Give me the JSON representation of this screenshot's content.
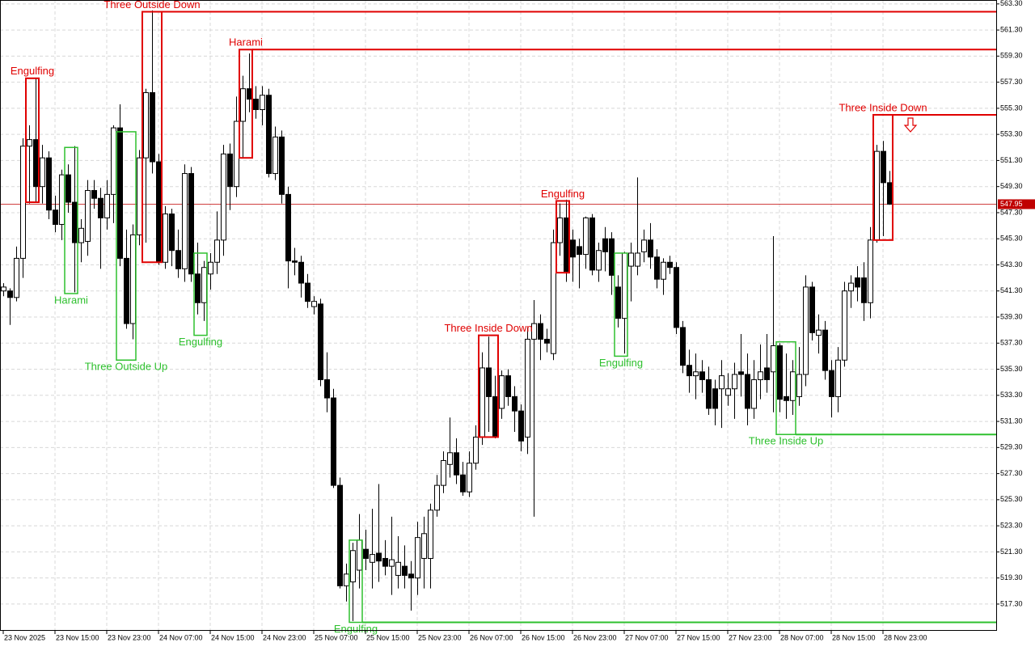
{
  "chart_data": {
    "type": "candlestick",
    "xlim": [
      -0.5,
      153.5
    ],
    "ylim": [
      515.25,
      563.6
    ],
    "grid": true,
    "up_color": "#ffffff",
    "down_color": "#000000",
    "current_price": 547.95,
    "current_color": "#c00000",
    "candles": [
      [
        541.3,
        541.9,
        540.9,
        541.6
      ],
      [
        541.3,
        541.5,
        538.7,
        540.8
      ],
      [
        540.8,
        544.7,
        540.5,
        543.8
      ],
      [
        543.8,
        553.0,
        542.3,
        552.4
      ],
      [
        552.4,
        554.0,
        548.0,
        552.9
      ],
      [
        552.9,
        557.6,
        548.1,
        549.3
      ],
      [
        549.3,
        552.5,
        548.0,
        551.5
      ],
      [
        551.5,
        552.0,
        546.8,
        547.5
      ],
      [
        547.5,
        548.6,
        545.8,
        546.4
      ],
      [
        546.4,
        550.6,
        545.2,
        550.2
      ],
      [
        550.2,
        551.0,
        547.3,
        548.1
      ],
      [
        548.1,
        552.4,
        541.2,
        545.0
      ],
      [
        545.0,
        546.8,
        543.5,
        546.1
      ],
      [
        545.1,
        549.8,
        544.0,
        549.0
      ],
      [
        549.0,
        549.8,
        547.6,
        548.4
      ],
      [
        548.4,
        549.2,
        543.0,
        546.9
      ],
      [
        546.9,
        549.8,
        546.0,
        548.7
      ],
      [
        548.7,
        554.0,
        546.5,
        553.8
      ],
      [
        553.8,
        555.6,
        543.2,
        543.8
      ],
      [
        543.8,
        546.0,
        538.4,
        538.8
      ],
      [
        538.8,
        546.4,
        537.6,
        545.6
      ],
      [
        545.6,
        552.1,
        544.8,
        551.5
      ],
      [
        551.5,
        556.8,
        545.0,
        556.5
      ],
      [
        556.5,
        562.8,
        550.3,
        551.2
      ],
      [
        551.2,
        551.8,
        543.3,
        543.5
      ],
      [
        543.5,
        547.8,
        543.0,
        547.2
      ],
      [
        547.2,
        547.6,
        543.2,
        544.4
      ],
      [
        544.4,
        546.0,
        542.3,
        543.0
      ],
      [
        543.0,
        551.0,
        542.0,
        550.3
      ],
      [
        550.3,
        550.8,
        542.0,
        542.6
      ],
      [
        542.6,
        545.0,
        539.5,
        540.4
      ],
      [
        540.4,
        543.6,
        539.0,
        543.1
      ],
      [
        542.6,
        544.2,
        541.4,
        543.5
      ],
      [
        543.5,
        547.4,
        542.6,
        545.2
      ],
      [
        545.2,
        552.5,
        544.0,
        551.8
      ],
      [
        551.8,
        552.6,
        547.5,
        549.3
      ],
      [
        549.3,
        556.2,
        548.5,
        554.3
      ],
      [
        554.3,
        557.8,
        551.5,
        556.8
      ],
      [
        556.8,
        559.5,
        555.0,
        556.0
      ],
      [
        556.0,
        557.0,
        554.5,
        555.2
      ],
      [
        555.2,
        557.0,
        554.0,
        556.3
      ],
      [
        556.3,
        556.8,
        550.0,
        550.3
      ],
      [
        550.3,
        553.9,
        549.8,
        553.1
      ],
      [
        553.1,
        553.6,
        548.0,
        548.7
      ],
      [
        548.7,
        549.3,
        541.5,
        543.6
      ],
      [
        543.6,
        544.6,
        542.5,
        543.5
      ],
      [
        543.5,
        544.0,
        540.8,
        541.9
      ],
      [
        541.9,
        542.6,
        540.0,
        540.5
      ],
      [
        540.1,
        540.9,
        539.5,
        540.5
      ],
      [
        540.3,
        540.7,
        534.0,
        534.5
      ],
      [
        534.5,
        536.6,
        532.0,
        533.1
      ],
      [
        533.1,
        533.8,
        526.2,
        526.4
      ],
      [
        526.4,
        527.0,
        518.5,
        518.7
      ],
      [
        518.7,
        520.4,
        517.5,
        519.6
      ],
      [
        519.0,
        522.0,
        516.0,
        521.4
      ],
      [
        519.9,
        524.2,
        518.5,
        522.2
      ],
      [
        521.5,
        523.0,
        519.9,
        520.8
      ],
      [
        520.5,
        524.6,
        518.5,
        521.1
      ],
      [
        521.2,
        526.5,
        519.0,
        520.6
      ],
      [
        520.8,
        522.2,
        519.5,
        520.2
      ],
      [
        520.2,
        524.0,
        518.0,
        520.7
      ],
      [
        519.5,
        522.5,
        518.5,
        520.5
      ],
      [
        520.2,
        521.8,
        518.5,
        519.5
      ],
      [
        519.6,
        520.6,
        516.8,
        519.3
      ],
      [
        519.3,
        523.6,
        518.0,
        522.4
      ],
      [
        520.8,
        524.0,
        518.5,
        522.7
      ],
      [
        520.8,
        525.0,
        518.5,
        524.5
      ],
      [
        524.5,
        527.2,
        524.0,
        526.4
      ],
      [
        526.4,
        529.0,
        525.8,
        528.3
      ],
      [
        528.0,
        531.6,
        527.0,
        528.9
      ],
      [
        528.9,
        530.0,
        526.5,
        527.2
      ],
      [
        527.2,
        528.2,
        525.6,
        525.9
      ],
      [
        525.9,
        529.0,
        525.5,
        528.1
      ],
      [
        528.1,
        531.0,
        527.6,
        530.1
      ],
      [
        530.1,
        536.6,
        529.5,
        535.4
      ],
      [
        535.4,
        537.8,
        530.5,
        533.2
      ],
      [
        533.2,
        534.8,
        530.0,
        530.1
      ],
      [
        532.3,
        535.2,
        531.5,
        534.8
      ],
      [
        534.8,
        535.3,
        532.5,
        533.2
      ],
      [
        533.2,
        534.0,
        530.5,
        532.1
      ],
      [
        532.1,
        532.6,
        529.0,
        529.8
      ],
      [
        530.1,
        538.5,
        528.8,
        537.6
      ],
      [
        537.6,
        540.6,
        524.0,
        538.8
      ],
      [
        538.8,
        539.5,
        536.0,
        537.6
      ],
      [
        537.6,
        538.4,
        536.6,
        537.3
      ],
      [
        536.5,
        546.0,
        536.0,
        545.0
      ],
      [
        545.0,
        548.0,
        544.0,
        546.9
      ],
      [
        546.9,
        548.3,
        542.0,
        542.8
      ],
      [
        545.2,
        546.0,
        542.0,
        543.9
      ],
      [
        544.7,
        545.3,
        541.5,
        544.1
      ],
      [
        544.1,
        547.0,
        543.0,
        546.9
      ],
      [
        546.9,
        547.2,
        542.5,
        542.9
      ],
      [
        542.9,
        545.0,
        542.0,
        544.4
      ],
      [
        545.3,
        546.2,
        542.8,
        544.3
      ],
      [
        545.3,
        545.8,
        541.0,
        542.5
      ],
      [
        541.6,
        542.5,
        538.5,
        539.2
      ],
      [
        539.2,
        544.3,
        536.5,
        544.2
      ],
      [
        543.2,
        545.0,
        540.5,
        544.2
      ],
      [
        543.2,
        550.0,
        542.5,
        544.2
      ],
      [
        544.3,
        546.0,
        543.5,
        545.2
      ],
      [
        545.2,
        546.5,
        543.0,
        543.9
      ],
      [
        543.9,
        544.5,
        541.5,
        542.2
      ],
      [
        542.2,
        543.8,
        541.0,
        543.5
      ],
      [
        543.5,
        544.0,
        542.6,
        543.1
      ],
      [
        543.1,
        543.5,
        538.0,
        538.5
      ],
      [
        538.5,
        539.0,
        535.0,
        535.6
      ],
      [
        535.6,
        536.8,
        533.5,
        534.8
      ],
      [
        534.8,
        536.5,
        533.0,
        535.1
      ],
      [
        535.1,
        536.0,
        533.5,
        534.5
      ],
      [
        534.5,
        535.5,
        531.8,
        532.3
      ],
      [
        533.8,
        534.5,
        531.0,
        532.3
      ],
      [
        533.8,
        536.0,
        530.8,
        534.8
      ],
      [
        533.3,
        535.0,
        532.5,
        533.8
      ],
      [
        533.8,
        535.8,
        531.5,
        534.9
      ],
      [
        535.1,
        538.0,
        533.2,
        534.9
      ],
      [
        534.9,
        536.5,
        531.0,
        532.3
      ],
      [
        532.3,
        536.0,
        531.5,
        534.5
      ],
      [
        534.5,
        537.2,
        533.0,
        535.1
      ],
      [
        535.4,
        538.0,
        533.5,
        534.5
      ],
      [
        535.1,
        545.5,
        532.0,
        537.1
      ],
      [
        537.1,
        537.3,
        532.0,
        533.0
      ],
      [
        533.2,
        536.5,
        531.5,
        532.9
      ],
      [
        532.9,
        536.0,
        531.8,
        535.1
      ],
      [
        533.2,
        537.0,
        532.5,
        534.9
      ],
      [
        534.9,
        542.5,
        534.0,
        541.6
      ],
      [
        541.6,
        542.0,
        537.5,
        538.1
      ],
      [
        537.9,
        539.5,
        536.5,
        538.3
      ],
      [
        538.3,
        539.0,
        534.5,
        535.2
      ],
      [
        535.2,
        536.0,
        531.6,
        533.2
      ],
      [
        533.2,
        537.0,
        532.0,
        536.0
      ],
      [
        536.0,
        542.0,
        535.5,
        541.3
      ],
      [
        541.3,
        542.5,
        540.0,
        541.9
      ],
      [
        542.3,
        543.2,
        540.5,
        541.6
      ],
      [
        542.3,
        543.5,
        539.0,
        540.4
      ],
      [
        540.4,
        546.2,
        539.2,
        545.2
      ],
      [
        545.2,
        552.5,
        545.0,
        552.0
      ],
      [
        552.0,
        552.8,
        545.5,
        549.6
      ],
      [
        549.6,
        550.5,
        547.9,
        547.95
      ]
    ],
    "patterns": [
      {
        "name": "Engulfing",
        "color": "#e00000",
        "side": "top",
        "bars": [
          4,
          5
        ],
        "high": 557.6,
        "low": 548.1
      },
      {
        "name": "Harami",
        "color": "#2ec02e",
        "side": "bottom",
        "bars": [
          10,
          11
        ],
        "high": 552.3,
        "low": 541.1
      },
      {
        "name": "Three Outside Up",
        "color": "#2ec02e",
        "side": "bottom",
        "bars": [
          18,
          20
        ],
        "high": 553.5,
        "low": 536.0
      },
      {
        "name": "Three Outside Down",
        "color": "#e00000",
        "side": "top",
        "bars": [
          22,
          24
        ],
        "high": 562.7,
        "low": 543.5,
        "line": true
      },
      {
        "name": "Engulfing",
        "color": "#2ec02e",
        "side": "bottom",
        "bars": [
          30,
          31
        ],
        "high": 544.2,
        "low": 537.9
      },
      {
        "name": "Harami",
        "color": "#e00000",
        "side": "top",
        "bars": [
          37,
          38
        ],
        "high": 559.8,
        "low": 551.5,
        "line": true
      },
      {
        "name": "Engulfing",
        "color": "#2ec02e",
        "side": "bottom",
        "bars": [
          54,
          55
        ],
        "high": 522.2,
        "low": 515.9,
        "line": true
      },
      {
        "name": "Three Inside Down",
        "color": "#e00000",
        "side": "top",
        "bars": [
          74,
          76
        ],
        "high": 537.9,
        "low": 530.1
      },
      {
        "name": "Engulfing",
        "color": "#e00000",
        "side": "top",
        "bars": [
          86,
          87
        ],
        "high": 548.2,
        "low": 542.7
      },
      {
        "name": "Engulfing",
        "color": "#2ec02e",
        "side": "bottom",
        "bars": [
          95,
          96
        ],
        "high": 544.2,
        "low": 536.3
      },
      {
        "name": "Three Inside Up",
        "color": "#2ec02e",
        "side": "bottom",
        "bars": [
          120,
          122
        ],
        "high": 537.4,
        "low": 530.3,
        "line": true
      },
      {
        "name": "Three Inside Down",
        "color": "#e00000",
        "side": "top",
        "bars": [
          135,
          137
        ],
        "high": 554.8,
        "low": 545.2,
        "line": true,
        "arrow": true
      }
    ],
    "yticks": [
      {
        "value": 563.3,
        "label": "563.30"
      },
      {
        "value": 561.3,
        "label": "561.30"
      },
      {
        "value": 559.3,
        "label": "559.30"
      },
      {
        "value": 557.3,
        "label": "557.30"
      },
      {
        "value": 555.3,
        "label": "555.30"
      },
      {
        "value": 553.3,
        "label": "553.30"
      },
      {
        "value": 551.3,
        "label": "551.30"
      },
      {
        "value": 549.3,
        "label": "549.30"
      },
      {
        "value": 547.3,
        "label": "547.30"
      },
      {
        "value": 545.3,
        "label": "545.30"
      },
      {
        "value": 543.3,
        "label": "543.30"
      },
      {
        "value": 541.3,
        "label": "541.30"
      },
      {
        "value": 539.3,
        "label": "539.30"
      },
      {
        "value": 537.3,
        "label": "537.30"
      },
      {
        "value": 535.3,
        "label": "535.30"
      },
      {
        "value": 533.3,
        "label": "533.30"
      },
      {
        "value": 531.3,
        "label": "531.30"
      },
      {
        "value": 529.3,
        "label": "529.30"
      },
      {
        "value": 527.3,
        "label": "527.30"
      },
      {
        "value": 525.3,
        "label": "525.30"
      },
      {
        "value": 523.3,
        "label": "523.30"
      },
      {
        "value": 521.3,
        "label": "521.30"
      },
      {
        "value": 519.3,
        "label": "519.30"
      },
      {
        "value": 517.3,
        "label": "517.30"
      }
    ],
    "xticks": [
      {
        "value": 0,
        "label": "23 Nov 2025"
      },
      {
        "value": 8,
        "label": "23 Nov 15:00"
      },
      {
        "value": 16,
        "label": "23 Nov 23:00"
      },
      {
        "value": 24,
        "label": "24 Nov 07:00"
      },
      {
        "value": 32,
        "label": "24 Nov 15:00"
      },
      {
        "value": 40,
        "label": "24 Nov 23:00"
      },
      {
        "value": 48,
        "label": "25 Nov 07:00"
      },
      {
        "value": 56,
        "label": "25 Nov 15:00"
      },
      {
        "value": 64,
        "label": "25 Nov 23:00"
      },
      {
        "value": 72,
        "label": "26 Nov 07:00"
      },
      {
        "value": 80,
        "label": "26 Nov 15:00"
      },
      {
        "value": 88,
        "label": "26 Nov 23:00"
      },
      {
        "value": 96,
        "label": "27 Nov 07:00"
      },
      {
        "value": 104,
        "label": "27 Nov 15:00"
      },
      {
        "value": 112,
        "label": "27 Nov 23:00"
      },
      {
        "value": 120,
        "label": "28 Nov 07:00"
      },
      {
        "value": 128,
        "label": "28 Nov 15:00"
      },
      {
        "value": 136,
        "label": "28 Nov 23:00"
      }
    ]
  }
}
